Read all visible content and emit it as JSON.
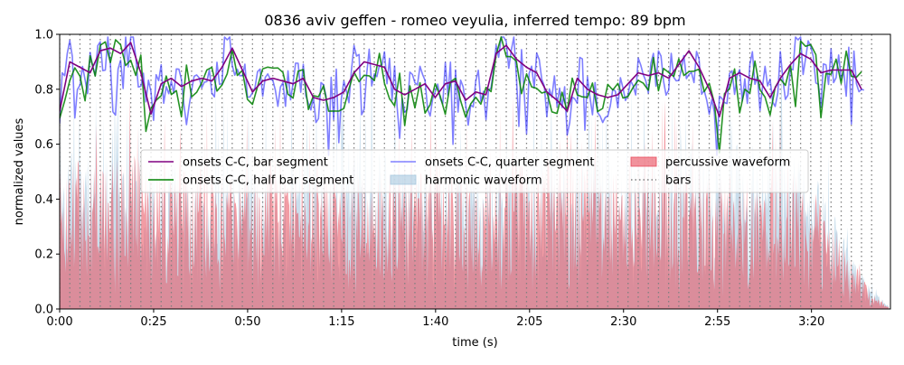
{
  "chart_data": {
    "type": "line",
    "title": "0836 aviv geffen - romeo veyulia, inferred tempo: 89 bpm",
    "xlabel": "time (s)",
    "ylabel": "normalized values",
    "xlim": [
      0,
      221
    ],
    "ylim": [
      0,
      1.0
    ],
    "x_ticks": [
      {
        "value": 0,
        "label": "0:00"
      },
      {
        "value": 25,
        "label": "0:25"
      },
      {
        "value": 50,
        "label": "0:50"
      },
      {
        "value": 75,
        "label": "1:15"
      },
      {
        "value": 100,
        "label": "1:40"
      },
      {
        "value": 125,
        "label": "2:05"
      },
      {
        "value": 150,
        "label": "2:30"
      },
      {
        "value": 175,
        "label": "2:55"
      },
      {
        "value": 200,
        "label": "3:20"
      }
    ],
    "y_ticks": [
      {
        "value": 0.0,
        "label": "0.0"
      },
      {
        "value": 0.2,
        "label": "0.2"
      },
      {
        "value": 0.4,
        "label": "0.4"
      },
      {
        "value": 0.6,
        "label": "0.6"
      },
      {
        "value": 0.8,
        "label": "0.8"
      },
      {
        "value": 1.0,
        "label": "1.0"
      }
    ],
    "grid": false,
    "legend_placement": "center",
    "bar_period_s": 2.7,
    "series": [
      {
        "name": "onsets C-C, bar segment",
        "color": "#800080",
        "kind": "line",
        "x": [
          0,
          2.7,
          5.4,
          8.1,
          10.8,
          13.5,
          16.2,
          18.9,
          21.6,
          24.3,
          27,
          29.7,
          32.4,
          35.1,
          37.8,
          40.5,
          43.2,
          45.9,
          48.6,
          51.3,
          54,
          56.7,
          59.4,
          62.1,
          64.8,
          67.5,
          70.2,
          72.9,
          75.6,
          78.3,
          81,
          83.7,
          86.4,
          89.1,
          91.8,
          94.5,
          97.2,
          99.9,
          102.6,
          105.3,
          108,
          110.7,
          113.4,
          116.1,
          118.8,
          121.5,
          124.2,
          126.9,
          129.6,
          132.3,
          135,
          137.7,
          140.4,
          143.1,
          145.8,
          148.5,
          151.2,
          153.9,
          156.6,
          159.3,
          162,
          164.7,
          167.4,
          170.1,
          172.8,
          175.5,
          178.2,
          180.9,
          183.6,
          186.3,
          189,
          191.7,
          194.4,
          197.1,
          199.8,
          202.5,
          205.2,
          207.9,
          210.6,
          213.3
        ],
        "values": [
          0.72,
          0.9,
          0.88,
          0.86,
          0.94,
          0.95,
          0.93,
          0.97,
          0.86,
          0.71,
          0.82,
          0.84,
          0.81,
          0.83,
          0.84,
          0.83,
          0.88,
          0.95,
          0.87,
          0.79,
          0.83,
          0.84,
          0.83,
          0.82,
          0.84,
          0.77,
          0.76,
          0.77,
          0.79,
          0.86,
          0.9,
          0.89,
          0.88,
          0.8,
          0.78,
          0.8,
          0.82,
          0.77,
          0.82,
          0.83,
          0.76,
          0.79,
          0.78,
          0.93,
          0.96,
          0.91,
          0.88,
          0.86,
          0.79,
          0.76,
          0.72,
          0.84,
          0.8,
          0.78,
          0.77,
          0.78,
          0.82,
          0.86,
          0.85,
          0.86,
          0.84,
          0.89,
          0.94,
          0.88,
          0.8,
          0.7,
          0.84,
          0.86,
          0.84,
          0.83,
          0.77,
          0.84,
          0.89,
          0.93,
          0.91,
          0.86,
          0.87,
          0.87,
          0.87,
          0.8
        ]
      },
      {
        "name": "onsets C-C, quarter segment",
        "color": "#0000ff",
        "kind": "line",
        "alpha": 0.5,
        "generated": "quarter",
        "x_start": 0,
        "x_end": 214,
        "step_s": 0.675,
        "base": [
          0.72,
          0.9,
          0.88,
          0.86,
          0.94,
          0.95,
          0.93,
          0.97,
          0.86,
          0.71,
          0.82,
          0.84,
          0.81,
          0.83,
          0.84,
          0.83,
          0.88,
          0.95,
          0.87,
          0.79,
          0.83,
          0.84,
          0.83,
          0.82,
          0.84,
          0.77,
          0.76,
          0.77,
          0.79,
          0.86,
          0.9,
          0.89,
          0.88,
          0.8,
          0.78,
          0.8,
          0.82,
          0.77,
          0.82,
          0.83,
          0.76,
          0.79,
          0.78,
          0.93,
          0.96,
          0.91,
          0.88,
          0.86,
          0.79,
          0.76,
          0.72,
          0.84,
          0.8,
          0.78,
          0.77,
          0.78,
          0.82,
          0.86,
          0.85,
          0.86,
          0.84,
          0.89,
          0.94,
          0.88,
          0.8,
          0.7,
          0.84,
          0.86,
          0.84,
          0.83,
          0.77,
          0.84,
          0.89,
          0.93,
          0.91,
          0.86,
          0.87,
          0.87,
          0.87,
          0.8
        ],
        "spread": 0.1
      },
      {
        "name": "onsets C-C, half bar segment",
        "color": "#008000",
        "kind": "line",
        "alpha": 0.85,
        "generated": "half",
        "x_start": 0,
        "x_end": 214,
        "step_s": 1.35,
        "base": [
          0.72,
          0.9,
          0.88,
          0.86,
          0.94,
          0.95,
          0.93,
          0.97,
          0.86,
          0.71,
          0.82,
          0.84,
          0.81,
          0.83,
          0.84,
          0.83,
          0.88,
          0.95,
          0.87,
          0.79,
          0.83,
          0.84,
          0.83,
          0.82,
          0.84,
          0.77,
          0.76,
          0.77,
          0.79,
          0.86,
          0.9,
          0.89,
          0.88,
          0.8,
          0.78,
          0.8,
          0.82,
          0.77,
          0.82,
          0.83,
          0.76,
          0.79,
          0.78,
          0.93,
          0.96,
          0.91,
          0.88,
          0.86,
          0.79,
          0.76,
          0.72,
          0.84,
          0.8,
          0.78,
          0.77,
          0.78,
          0.82,
          0.86,
          0.85,
          0.86,
          0.84,
          0.89,
          0.94,
          0.88,
          0.8,
          0.7,
          0.84,
          0.86,
          0.84,
          0.83,
          0.77,
          0.84,
          0.89,
          0.93,
          0.91,
          0.86,
          0.87,
          0.87,
          0.87,
          0.8
        ],
        "spread": 0.07
      },
      {
        "name": "harmonic waveform",
        "color": "#a6c8e0",
        "kind": "area",
        "generated": "waveform",
        "seed": 7,
        "envelope": [
          [
            0,
            0.42
          ],
          [
            3,
            0.58
          ],
          [
            20,
            0.55
          ],
          [
            50,
            0.52
          ],
          [
            75,
            0.62
          ],
          [
            100,
            0.55
          ],
          [
            125,
            0.56
          ],
          [
            150,
            0.55
          ],
          [
            170,
            0.62
          ],
          [
            195,
            0.58
          ],
          [
            203,
            0.45
          ],
          [
            210,
            0.22
          ],
          [
            216,
            0.08
          ],
          [
            221,
            0.0
          ]
        ]
      },
      {
        "name": "percussive waveform",
        "color": "#e84a5a",
        "kind": "area",
        "generated": "waveform",
        "seed": 13,
        "envelope": [
          [
            0,
            0.4
          ],
          [
            3,
            0.54
          ],
          [
            20,
            0.56
          ],
          [
            50,
            0.5
          ],
          [
            75,
            0.52
          ],
          [
            100,
            0.5
          ],
          [
            125,
            0.56
          ],
          [
            150,
            0.52
          ],
          [
            170,
            0.5
          ],
          [
            195,
            0.5
          ],
          [
            203,
            0.4
          ],
          [
            210,
            0.2
          ],
          [
            216,
            0.06
          ],
          [
            221,
            0.0
          ]
        ]
      },
      {
        "name": "bars",
        "color": "#808080",
        "kind": "vlines",
        "x_start": 0,
        "x_end": 218,
        "step_s": 2.7
      }
    ],
    "legend": [
      {
        "label": "onsets C-C, bar segment",
        "color": "#800080",
        "kind": "line"
      },
      {
        "label": "onsets C-C, half bar segment",
        "color": "#008000",
        "kind": "line"
      },
      {
        "label": "onsets C-C, quarter segment",
        "color": "#8080ff",
        "kind": "line"
      },
      {
        "label": "harmonic waveform",
        "color": "#a6c8e0",
        "kind": "patch"
      },
      {
        "label": "percussive waveform",
        "color": "#e84a5a",
        "kind": "patch"
      },
      {
        "label": "bars",
        "color": "#808080",
        "kind": "dotted"
      }
    ]
  }
}
